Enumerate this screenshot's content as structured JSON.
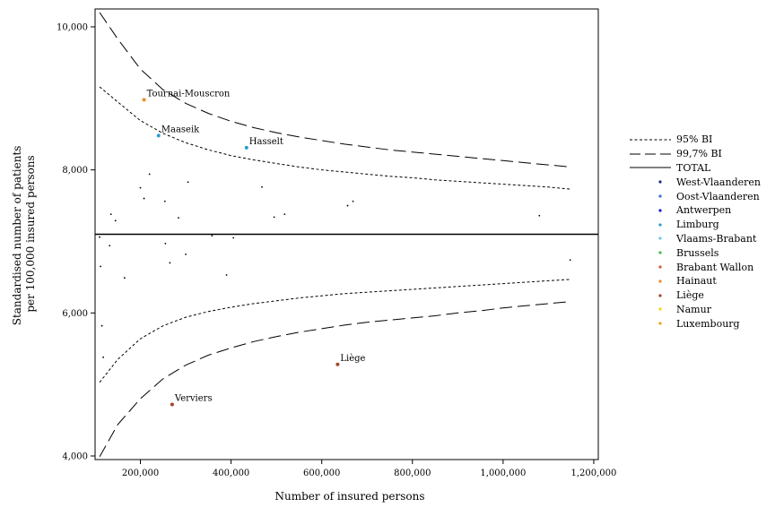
{
  "chart_data": {
    "type": "scatter",
    "xlabel": "Number of insured persons",
    "ylabel": "Standardised number of patients per 100,000 insured persons",
    "ylabel_lines": [
      "Standardised number of patients",
      "per 100,000 insured persons"
    ],
    "xlim": [
      100000,
      1210000
    ],
    "ylim": [
      3950,
      10250
    ],
    "xticks": [
      200000,
      400000,
      600000,
      800000,
      1000000,
      1200000
    ],
    "xtick_labels": [
      "200,000",
      "400,000",
      "600,000",
      "800,000",
      "1,000,000",
      "1,200,000"
    ],
    "yticks": [
      4000,
      6000,
      8000,
      10000
    ],
    "ytick_labels": [
      "4,000",
      "6,000",
      "8,000",
      "10,000"
    ],
    "grid": false,
    "legend_position": "right",
    "total": 7100,
    "limits": {
      "x": [
        110000,
        150000,
        200000,
        250000,
        300000,
        350000,
        400000,
        450000,
        500000,
        550000,
        600000,
        650000,
        700000,
        750000,
        800000,
        850000,
        900000,
        950000,
        1000000,
        1050000,
        1100000,
        1150000
      ],
      "upper95": [
        9160,
        8950,
        8690,
        8510,
        8380,
        8280,
        8200,
        8140,
        8090,
        8040,
        8000,
        7970,
        7940,
        7910,
        7890,
        7860,
        7840,
        7820,
        7800,
        7780,
        7760,
        7730
      ],
      "lower95": [
        5030,
        5350,
        5640,
        5820,
        5940,
        6020,
        6080,
        6130,
        6170,
        6210,
        6240,
        6270,
        6290,
        6310,
        6330,
        6350,
        6370,
        6390,
        6410,
        6430,
        6450,
        6470
      ],
      "upper997": [
        10200,
        9830,
        9410,
        9120,
        8930,
        8790,
        8680,
        8590,
        8520,
        8460,
        8410,
        8360,
        8320,
        8280,
        8250,
        8220,
        8190,
        8160,
        8130,
        8100,
        8070,
        8040
      ],
      "lower997": [
        3990,
        4440,
        4800,
        5080,
        5270,
        5410,
        5510,
        5600,
        5670,
        5730,
        5780,
        5830,
        5870,
        5900,
        5930,
        5960,
        6000,
        6030,
        6070,
        6100,
        6130,
        6160
      ]
    },
    "series": [
      {
        "name": "West-Vlaanderen",
        "color": "#1f2a8a"
      },
      {
        "name": "Oost-Vlaanderen",
        "color": "#3a6fd8"
      },
      {
        "name": "Antwerpen",
        "color": "#1a1ad6"
      },
      {
        "name": "Limburg",
        "color": "#2a9ad4"
      },
      {
        "name": "Vlaams-Brabant",
        "color": "#6fc6ea"
      },
      {
        "name": "Brussels",
        "color": "#3dbb4a"
      },
      {
        "name": "Brabant Wallon",
        "color": "#d2592a"
      },
      {
        "name": "Hainaut",
        "color": "#f08a24"
      },
      {
        "name": "Liège",
        "color": "#a0462a"
      },
      {
        "name": "Namur",
        "color": "#f2d31a"
      },
      {
        "name": "Luxembourg",
        "color": "#f0a020"
      }
    ],
    "highlighted_points": [
      {
        "label": "Tournai-Mouscron",
        "x": 208000,
        "y": 8980,
        "series": "Hainaut"
      },
      {
        "label": "Maaseik",
        "x": 240000,
        "y": 8480,
        "series": "Limburg"
      },
      {
        "label": "Hasselt",
        "x": 434000,
        "y": 8310,
        "series": "Limburg"
      },
      {
        "label": "Liège",
        "x": 635000,
        "y": 5280,
        "series": "Liège"
      },
      {
        "label": "Verviers",
        "x": 270000,
        "y": 4720,
        "series": "Liège"
      }
    ],
    "points": [
      {
        "x": 110000,
        "y": 7060
      },
      {
        "x": 112000,
        "y": 6650
      },
      {
        "x": 115000,
        "y": 5820
      },
      {
        "x": 118000,
        "y": 5380
      },
      {
        "x": 132000,
        "y": 6940
      },
      {
        "x": 135000,
        "y": 7380
      },
      {
        "x": 145000,
        "y": 7290
      },
      {
        "x": 165000,
        "y": 6490
      },
      {
        "x": 200000,
        "y": 7750
      },
      {
        "x": 208000,
        "y": 7600
      },
      {
        "x": 220000,
        "y": 7940
      },
      {
        "x": 254000,
        "y": 7560
      },
      {
        "x": 255000,
        "y": 6970
      },
      {
        "x": 265000,
        "y": 6700
      },
      {
        "x": 284000,
        "y": 7330
      },
      {
        "x": 300000,
        "y": 6820
      },
      {
        "x": 305000,
        "y": 7830
      },
      {
        "x": 358000,
        "y": 7080
      },
      {
        "x": 390000,
        "y": 6530
      },
      {
        "x": 405000,
        "y": 7050
      },
      {
        "x": 468000,
        "y": 7760
      },
      {
        "x": 495000,
        "y": 7340
      },
      {
        "x": 518000,
        "y": 7380
      },
      {
        "x": 657000,
        "y": 7500
      },
      {
        "x": 669000,
        "y": 7560
      },
      {
        "x": 1080000,
        "y": 7360
      },
      {
        "x": 1148000,
        "y": 6740
      }
    ]
  },
  "legend": {
    "items": [
      {
        "label": "95% BI",
        "kind": "short-dash"
      },
      {
        "label": "99,7% BI",
        "kind": "long-dash"
      },
      {
        "label": "TOTAL",
        "kind": "solid"
      },
      {
        "label": "West-Vlaanderen",
        "kind": "dot",
        "color": "#1f2a8a"
      },
      {
        "label": "Oost-Vlaanderen",
        "kind": "dot",
        "color": "#3a6fd8"
      },
      {
        "label": "Antwerpen",
        "kind": "dot",
        "color": "#1a1ad6"
      },
      {
        "label": "Limburg",
        "kind": "dot",
        "color": "#2a9ad4"
      },
      {
        "label": "Vlaams-Brabant",
        "kind": "dot",
        "color": "#6fc6ea"
      },
      {
        "label": "Brussels",
        "kind": "dot",
        "color": "#3dbb4a"
      },
      {
        "label": "Brabant Wallon",
        "kind": "dot",
        "color": "#d2592a"
      },
      {
        "label": "Hainaut",
        "kind": "dot",
        "color": "#f08a24"
      },
      {
        "label": "Liège",
        "kind": "dot",
        "color": "#a0462a"
      },
      {
        "label": "Namur",
        "kind": "dot",
        "color": "#f2d31a"
      },
      {
        "label": "Luxembourg",
        "kind": "dot",
        "color": "#f0a020"
      }
    ]
  }
}
